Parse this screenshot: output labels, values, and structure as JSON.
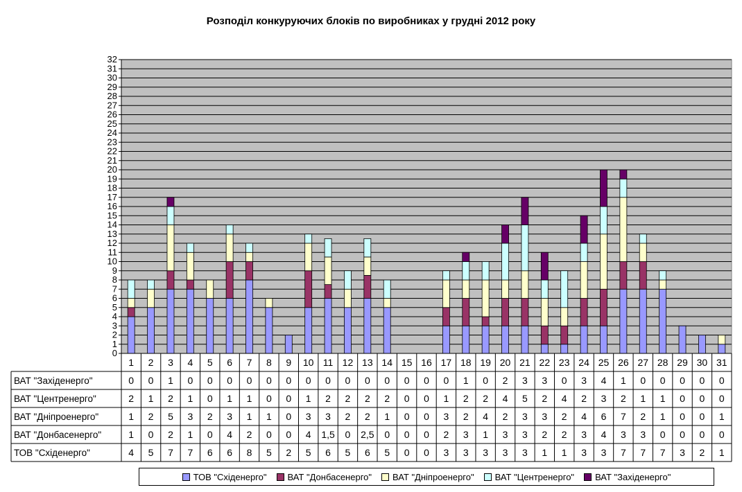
{
  "chart_data": {
    "type": "bar",
    "stacked": true,
    "title": "Розподіл конкуруючих блоків по виробниках у грудні 2012 року",
    "categories": [
      "1",
      "2",
      "3",
      "4",
      "5",
      "6",
      "7",
      "8",
      "9",
      "10",
      "11",
      "12",
      "13",
      "14",
      "15",
      "16",
      "17",
      "18",
      "19",
      "20",
      "21",
      "22",
      "23",
      "24",
      "25",
      "26",
      "27",
      "28",
      "29",
      "30",
      "31"
    ],
    "ylim": [
      0,
      32
    ],
    "yticks": [
      "0",
      "1",
      "2",
      "3",
      "4",
      "5",
      "6",
      "7",
      "8",
      "9",
      "10",
      "11",
      "12",
      "13",
      "14",
      "15",
      "16",
      "17",
      "18",
      "19",
      "20",
      "21",
      "22",
      "23",
      "24",
      "25",
      "26",
      "27",
      "28",
      "29",
      "30",
      "31",
      "32"
    ],
    "grid": true,
    "legend_position": "bottom",
    "series": [
      {
        "name": "ТОВ \"Східенерго\"",
        "color": "#9999ff",
        "values": [
          4,
          5,
          7,
          7,
          6,
          6,
          8,
          5,
          2,
          5,
          6,
          5,
          6,
          5,
          0,
          0,
          3,
          3,
          3,
          3,
          3,
          1,
          1,
          3,
          3,
          7,
          7,
          7,
          3,
          2,
          1
        ],
        "labels": [
          "4",
          "5",
          "7",
          "7",
          "6",
          "6",
          "8",
          "5",
          "2",
          "5",
          "6",
          "5",
          "6",
          "5",
          "0",
          "0",
          "3",
          "3",
          "3",
          "3",
          "3",
          "1",
          "1",
          "3",
          "3",
          "7",
          "7",
          "7",
          "3",
          "2",
          "1"
        ]
      },
      {
        "name": "ВАТ \"Донбасенерго\"",
        "color": "#993366",
        "values": [
          1,
          0,
          2,
          1,
          0,
          4,
          2,
          0,
          0,
          4,
          1.5,
          0,
          2.5,
          0,
          0,
          0,
          2,
          3,
          1,
          3,
          3,
          2,
          2,
          3,
          4,
          3,
          3,
          0,
          0,
          0,
          0
        ],
        "labels": [
          "1",
          "0",
          "2",
          "1",
          "0",
          "4",
          "2",
          "0",
          "0",
          "4",
          "1,5",
          "0",
          "2,5",
          "0",
          "0",
          "0",
          "2",
          "3",
          "1",
          "3",
          "3",
          "2",
          "2",
          "3",
          "4",
          "3",
          "3",
          "0",
          "0",
          "0",
          "0"
        ]
      },
      {
        "name": "ВАТ \"Дніпроенерго\"",
        "color": "#ffffcc",
        "values": [
          1,
          2,
          5,
          3,
          2,
          3,
          1,
          1,
          0,
          3,
          3,
          2,
          2,
          1,
          0,
          0,
          3,
          2,
          4,
          2,
          3,
          3,
          2,
          4,
          6,
          7,
          2,
          1,
          0,
          0,
          1
        ],
        "labels": [
          "1",
          "2",
          "5",
          "3",
          "2",
          "3",
          "1",
          "1",
          "0",
          "3",
          "3",
          "2",
          "2",
          "1",
          "0",
          "0",
          "3",
          "2",
          "4",
          "2",
          "3",
          "3",
          "2",
          "4",
          "6",
          "7",
          "2",
          "1",
          "0",
          "0",
          "1"
        ]
      },
      {
        "name": "ВАТ \"Центренерго\"",
        "color": "#ccffff",
        "values": [
          2,
          1,
          2,
          1,
          0,
          1,
          1,
          0,
          0,
          1,
          2,
          2,
          2,
          2,
          0,
          0,
          1,
          2,
          2,
          4,
          5,
          2,
          4,
          2,
          3,
          2,
          1,
          1,
          0,
          0,
          0
        ],
        "labels": [
          "2",
          "1",
          "2",
          "1",
          "0",
          "1",
          "1",
          "0",
          "0",
          "1",
          "2",
          "2",
          "2",
          "2",
          "0",
          "0",
          "1",
          "2",
          "2",
          "4",
          "5",
          "2",
          "4",
          "2",
          "3",
          "2",
          "1",
          "1",
          "0",
          "0",
          "0"
        ]
      },
      {
        "name": "ВАТ \"Західенерго\"",
        "color": "#660066",
        "values": [
          0,
          0,
          1,
          0,
          0,
          0,
          0,
          0,
          0,
          0,
          0,
          0,
          0,
          0,
          0,
          0,
          0,
          1,
          0,
          2,
          3,
          3,
          0,
          3,
          4,
          1,
          0,
          0,
          0,
          0,
          0
        ],
        "labels": [
          "0",
          "0",
          "1",
          "0",
          "0",
          "0",
          "0",
          "0",
          "0",
          "0",
          "0",
          "0",
          "0",
          "0",
          "0",
          "0",
          "0",
          "1",
          "0",
          "2",
          "3",
          "3",
          "0",
          "3",
          "4",
          "1",
          "0",
          "0",
          "0",
          "0",
          "0"
        ]
      }
    ],
    "table_row_order": [
      "ВАТ \"Західенерго\"",
      "ВАТ \"Центренерго\"",
      "ВАТ \"Дніпроенерго\"",
      "ВАТ \"Донбасенерго\"",
      "ТОВ \"Східенерго\""
    ],
    "colors": {
      "plot_bg": "#c0c0c0",
      "grid": "#000000"
    }
  }
}
